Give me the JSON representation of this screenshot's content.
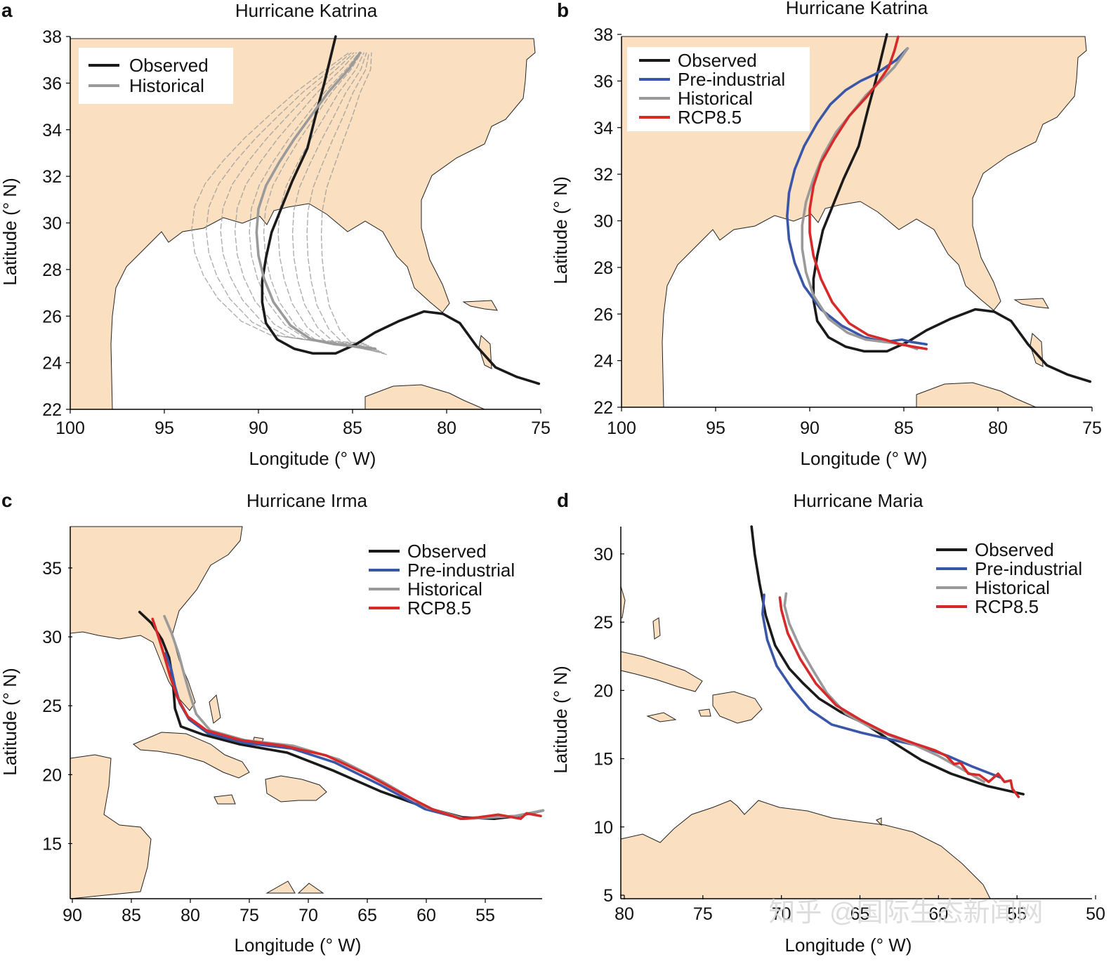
{
  "watermark": "知乎 @国际生态新闻网",
  "colors": {
    "observed": "#1a1a1a",
    "pre_industrial": "#3a56a8",
    "historical": "#9a9a9a",
    "rcp85": "#d62a2a",
    "land": "#fae0c0"
  },
  "chart_data": [
    {
      "panel": "a",
      "type": "line",
      "title": "Hurricane Katrina",
      "xlabel": "Longitude (° W)",
      "ylabel": "Latitude (° N)",
      "xlim": [
        100,
        75
      ],
      "ylim": [
        22,
        38
      ],
      "xticks": [
        "100",
        "95",
        "90",
        "85",
        "80",
        "75"
      ],
      "yticks": [
        "22",
        "24",
        "26",
        "28",
        "30",
        "32",
        "34",
        "36",
        "38"
      ],
      "legend_position": "top-left",
      "grid": false,
      "series": [
        {
          "name": "Observed",
          "color": "#1a1a1a",
          "x": [
            75.1,
            76.3,
            77.4,
            78.4,
            79.3,
            80.2,
            81.2,
            82.5,
            83.8,
            84.8,
            85.9,
            87.1,
            88.1,
            89.0,
            89.6,
            89.8,
            89.8,
            89.6,
            89.3,
            88.8,
            88.2,
            87.4,
            86.9,
            86.5,
            86.2,
            85.9
          ],
          "y": [
            23.1,
            23.4,
            23.8,
            24.7,
            25.7,
            26.1,
            26.2,
            25.8,
            25.3,
            24.8,
            24.4,
            24.4,
            24.6,
            25.0,
            25.7,
            26.6,
            27.5,
            28.5,
            29.6,
            30.6,
            31.8,
            33.2,
            34.8,
            36.0,
            37.0,
            38.0
          ]
        },
        {
          "name": "Historical",
          "color": "#9a9a9a",
          "x": [
            83.8,
            84.9,
            86.0,
            87.2,
            88.3,
            89.2,
            89.7,
            90.0,
            90.1,
            90.0,
            89.6,
            88.9,
            88.1,
            87.2,
            86.3,
            85.2,
            84.6
          ],
          "y": [
            24.6,
            24.7,
            24.8,
            25.0,
            25.6,
            26.6,
            27.6,
            28.6,
            29.6,
            30.6,
            31.6,
            32.6,
            33.6,
            34.6,
            35.6,
            36.6,
            37.3
          ]
        }
      ],
      "ensemble_members": 10
    },
    {
      "panel": "b",
      "type": "line",
      "title": "Hurricane Katrina",
      "xlabel": "Longitude (° W)",
      "ylabel": "Latitude (° N)",
      "xlim": [
        100,
        75
      ],
      "ylim": [
        22,
        38
      ],
      "xticks": [
        "100",
        "95",
        "90",
        "85",
        "80",
        "75"
      ],
      "yticks": [
        "22",
        "24",
        "26",
        "28",
        "30",
        "32",
        "34",
        "36",
        "38"
      ],
      "legend_position": "top-left",
      "grid": false,
      "series": [
        {
          "name": "Observed",
          "color": "#1a1a1a",
          "x": [
            75.1,
            76.3,
            77.4,
            78.4,
            79.3,
            80.2,
            81.2,
            82.5,
            83.8,
            84.8,
            85.9,
            87.1,
            88.1,
            89.0,
            89.6,
            89.8,
            89.8,
            89.6,
            89.3,
            88.8,
            88.2,
            87.4,
            86.9,
            86.5,
            86.2,
            85.9
          ],
          "y": [
            23.1,
            23.4,
            23.8,
            24.7,
            25.7,
            26.1,
            26.2,
            25.8,
            25.3,
            24.8,
            24.4,
            24.4,
            24.6,
            25.0,
            25.7,
            26.6,
            27.5,
            28.5,
            29.6,
            30.6,
            31.8,
            33.2,
            34.8,
            36.0,
            37.0,
            38.0
          ]
        },
        {
          "name": "Pre-industrial",
          "color": "#3a56a8",
          "x": [
            83.8,
            84.6,
            85.1,
            86.0,
            87.1,
            88.3,
            89.4,
            90.3,
            90.8,
            91.1,
            91.2,
            91.1,
            90.8,
            90.3,
            89.6,
            88.9,
            88.1,
            87.3,
            86.5,
            85.4,
            84.8
          ],
          "y": [
            24.7,
            24.8,
            24.9,
            24.8,
            25.0,
            25.5,
            26.2,
            27.2,
            28.2,
            29.2,
            30.2,
            31.2,
            32.2,
            33.2,
            34.2,
            35.0,
            35.6,
            36.0,
            36.3,
            36.9,
            37.4
          ]
        },
        {
          "name": "Historical",
          "color": "#9a9a9a",
          "x": [
            84.3,
            85.0,
            86.0,
            87.0,
            88.0,
            89.0,
            89.8,
            90.2,
            90.4,
            90.4,
            90.2,
            89.8,
            89.3,
            88.6,
            87.8,
            87.0,
            86.1,
            85.5,
            84.8
          ],
          "y": [
            24.5,
            24.7,
            24.8,
            24.9,
            25.2,
            25.8,
            26.8,
            27.8,
            28.8,
            29.8,
            30.8,
            31.8,
            32.8,
            33.8,
            34.6,
            35.4,
            36.1,
            36.6,
            37.4
          ]
        },
        {
          "name": "RCP8.5",
          "color": "#d62a2a",
          "x": [
            83.8,
            84.5,
            85.2,
            86.0,
            86.9,
            87.9,
            88.8,
            89.4,
            89.8,
            90.0,
            90.0,
            89.8,
            89.4,
            88.7,
            87.9,
            87.0,
            86.3,
            85.8,
            85.5,
            85.3
          ],
          "y": [
            24.5,
            24.6,
            24.7,
            24.9,
            25.1,
            25.6,
            26.5,
            27.5,
            28.5,
            29.5,
            30.5,
            31.5,
            32.5,
            33.5,
            34.5,
            35.3,
            36.0,
            36.6,
            37.3,
            37.9
          ]
        }
      ]
    },
    {
      "panel": "c",
      "type": "line",
      "title": "Hurricane Irma",
      "xlabel": "Longitude (° W)",
      "ylabel": "Latitude (° N)",
      "xlim": [
        90,
        50
      ],
      "ylim": [
        11,
        38
      ],
      "xticks": [
        "90",
        "85",
        "80",
        "75",
        "70",
        "65",
        "60",
        "55"
      ],
      "yticks": [
        "15",
        "20",
        "25",
        "30",
        "35"
      ],
      "legend_position": "top-right",
      "grid": false,
      "series": [
        {
          "name": "Observed",
          "color": "#1a1a1a",
          "x": [
            50.1,
            52.2,
            54.2,
            56.9,
            60.0,
            63.9,
            67.9,
            71.8,
            75.8,
            78.9,
            80.8,
            81.3,
            81.5,
            81.8,
            82.4,
            83.3,
            84.3
          ],
          "y": [
            17.4,
            17.0,
            16.8,
            16.9,
            17.6,
            18.8,
            20.3,
            21.6,
            22.2,
            22.9,
            23.5,
            24.8,
            27.0,
            28.5,
            29.8,
            31.0,
            31.8
          ]
        },
        {
          "name": "Pre-industrial",
          "color": "#3a56a8",
          "x": [
            50.1,
            52.3,
            54.3,
            56.9,
            60.1,
            64.0,
            67.8,
            71.4,
            75.4,
            78.5,
            80.1,
            80.9,
            81.3,
            81.6,
            82.1
          ],
          "y": [
            17.4,
            17.0,
            16.9,
            16.8,
            17.5,
            19.3,
            20.9,
            21.9,
            22.3,
            23.0,
            24.0,
            25.2,
            26.4,
            27.6,
            28.8
          ]
        },
        {
          "name": "Historical",
          "color": "#9a9a9a",
          "x": [
            50.1,
            52.5,
            54.6,
            56.8,
            59.9,
            63.7,
            67.4,
            71.3,
            75.4,
            78.3,
            79.5,
            80.0,
            80.5,
            81.0,
            81.6,
            82.2
          ],
          "y": [
            17.4,
            17.0,
            16.9,
            16.8,
            17.6,
            19.5,
            21.1,
            22.1,
            22.5,
            23.2,
            24.4,
            25.7,
            27.2,
            28.8,
            30.3,
            31.5
          ]
        },
        {
          "name": "RCP8.5",
          "color": "#d62a2a",
          "x": [
            50.3,
            51.5,
            52.0,
            53.9,
            55.6,
            57.1,
            59.5,
            62.0,
            65.0,
            68.5,
            72.1,
            75.7,
            78.6,
            80.2,
            81.1,
            81.7,
            82.2,
            82.7,
            83.2
          ],
          "y": [
            17.0,
            17.2,
            16.8,
            17.1,
            16.9,
            16.8,
            17.5,
            18.6,
            20.0,
            21.4,
            22.1,
            22.5,
            23.2,
            24.2,
            25.6,
            27.1,
            28.6,
            30.0,
            31.3
          ]
        }
      ]
    },
    {
      "panel": "d",
      "type": "line",
      "title": "Hurricane Maria",
      "xlabel": "Longitude (° W)",
      "ylabel": "Latitude (° N)",
      "xlim": [
        80,
        50
      ],
      "ylim": [
        5,
        32
      ],
      "xticks": [
        "80",
        "75",
        "70",
        "65",
        "60",
        "55",
        "50"
      ],
      "yticks": [
        "5",
        "10",
        "15",
        "20",
        "25",
        "30"
      ],
      "legend_position": "top-right",
      "grid": false,
      "series": [
        {
          "name": "Observed",
          "color": "#1a1a1a",
          "x": [
            54.6,
            56.9,
            59.2,
            61.1,
            62.9,
            64.6,
            66.2,
            67.6,
            68.6,
            69.5,
            70.4,
            71.0,
            71.4,
            71.7,
            71.9
          ],
          "y": [
            12.4,
            13.0,
            13.9,
            14.9,
            16.2,
            17.5,
            18.4,
            19.4,
            20.5,
            21.6,
            23.3,
            25.5,
            27.9,
            30.0,
            32.0
          ]
        },
        {
          "name": "Pre-industrial",
          "color": "#3a56a8",
          "x": [
            56.0,
            57.8,
            59.4,
            61.1,
            63.0,
            64.9,
            66.8,
            68.2,
            69.3,
            70.3,
            70.9,
            71.2,
            71.1
          ],
          "y": [
            13.6,
            14.4,
            15.2,
            15.9,
            16.4,
            16.9,
            17.5,
            18.6,
            20.1,
            21.8,
            23.7,
            25.6,
            27.0
          ]
        },
        {
          "name": "Historical",
          "color": "#9a9a9a",
          "x": [
            57.1,
            58.6,
            60.0,
            61.5,
            62.9,
            64.5,
            65.9,
            67.1,
            68.0,
            68.8,
            69.5,
            69.8,
            69.7
          ],
          "y": [
            13.3,
            14.3,
            15.2,
            16.0,
            16.6,
            17.4,
            18.3,
            19.8,
            21.5,
            23.1,
            24.9,
            26.2,
            27.1
          ]
        },
        {
          "name": "RCP8.5",
          "color": "#d62a2a",
          "x": [
            54.9,
            55.3,
            55.4,
            55.8,
            56.2,
            56.8,
            57.4,
            58.1,
            58.6,
            59.0,
            59.5,
            60.2,
            61.5,
            63.2,
            64.9,
            66.5,
            67.8,
            68.8,
            69.6,
            70.0,
            70.1
          ],
          "y": [
            12.2,
            12.8,
            13.4,
            13.3,
            13.9,
            13.3,
            13.8,
            13.9,
            14.7,
            14.6,
            15.2,
            15.6,
            16.1,
            16.8,
            17.8,
            18.9,
            20.5,
            22.3,
            24.2,
            25.9,
            26.8
          ]
        }
      ]
    }
  ]
}
